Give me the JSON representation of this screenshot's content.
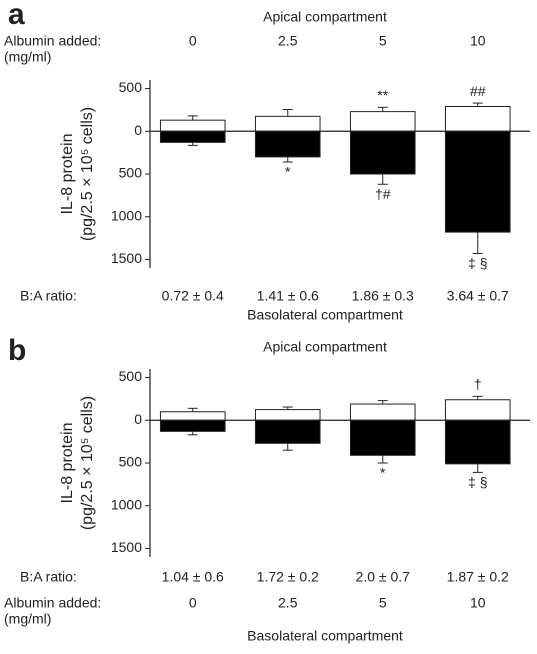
{
  "chart_data": [
    {
      "type": "bar",
      "panel": "a",
      "categories_label": "Albumin added:",
      "categories_unit": "(mg/ml)",
      "categories": [
        "0",
        "2.5",
        "5",
        "10"
      ],
      "ratio_label": "B:A ratio:",
      "ratios": [
        "0.72 ± 0.4",
        "1.41 ± 0.6",
        "1.86 ± 0.3",
        "3.64 ± 0.7"
      ],
      "ylabel": [
        "IL-8 protein",
        "(pg/2.5 × 10⁵ cells)"
      ],
      "ylim": [
        -1600,
        600
      ],
      "yticks": [
        500,
        0,
        {
          "value": -500,
          "label": "500"
        },
        {
          "value": -1000,
          "label": "1000"
        },
        {
          "value": -1500,
          "label": "1500"
        }
      ],
      "series": [
        {
          "name": "Apical compartment",
          "color": "#ffffff",
          "values": [
            130,
            175,
            230,
            290
          ],
          "errors": [
            50,
            80,
            50,
            40
          ],
          "annotations": [
            null,
            null,
            "**",
            "##"
          ]
        },
        {
          "name": "Basolateral compartment",
          "color": "#000000",
          "values": [
            -130,
            -300,
            -500,
            -1180
          ],
          "errors": [
            35,
            60,
            120,
            250
          ],
          "annotations": [
            null,
            "*",
            "†#",
            "‡ §"
          ]
        }
      ]
    },
    {
      "type": "bar",
      "panel": "b",
      "categories_label": "Albumin added:",
      "categories_unit": "(mg/ml)",
      "categories": [
        "0",
        "2.5",
        "5",
        "10"
      ],
      "ratio_label": "B:A ratio:",
      "ratios": [
        "1.04 ± 0.6",
        "1.72 ± 0.2",
        "2.0 ± 0.7",
        "1.87 ± 0.2"
      ],
      "ylabel": [
        "IL-8 protein",
        "(pg/2.5 × 10⁵ cells)"
      ],
      "ylim": [
        -1600,
        600
      ],
      "yticks": [
        500,
        0,
        {
          "value": -500,
          "label": "500"
        },
        {
          "value": -1000,
          "label": "1000"
        },
        {
          "value": -1500,
          "label": "1500"
        }
      ],
      "series": [
        {
          "name": "Apical compartment",
          "color": "#ffffff",
          "values": [
            100,
            125,
            190,
            240
          ],
          "errors": [
            40,
            30,
            40,
            40
          ],
          "annotations": [
            null,
            null,
            null,
            "†"
          ]
        },
        {
          "name": "Basolateral compartment",
          "color": "#000000",
          "values": [
            -130,
            -270,
            -410,
            -510
          ],
          "errors": [
            40,
            80,
            90,
            100
          ],
          "annotations": [
            null,
            null,
            "*",
            "‡ §"
          ]
        }
      ]
    }
  ]
}
